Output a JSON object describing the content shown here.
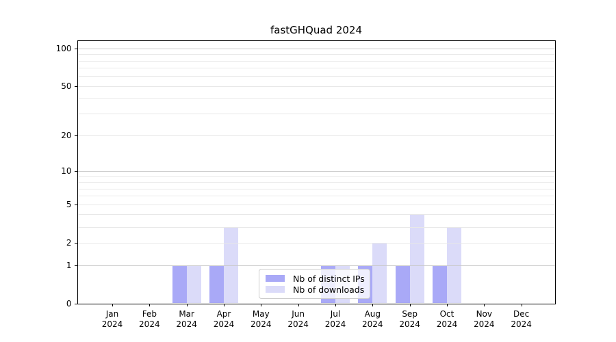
{
  "title": "fastGHQuad 2024",
  "chart_data": {
    "type": "bar",
    "title": "fastGHQuad 2024",
    "categories": [
      "Jan",
      "Feb",
      "Mar",
      "Apr",
      "May",
      "Jun",
      "Jul",
      "Aug",
      "Sep",
      "Oct",
      "Nov",
      "Dec"
    ],
    "category_year": "2024",
    "series": [
      {
        "name": "Nb of distinct IPs",
        "color": "#a9a9f7",
        "values": [
          0,
          0,
          1,
          1,
          0,
          0,
          1,
          1,
          1,
          1,
          0,
          0
        ]
      },
      {
        "name": "Nb of downloads",
        "color": "#dbdbf9",
        "values": [
          0,
          0,
          1,
          3,
          0,
          0,
          1,
          2,
          4,
          3,
          0,
          0
        ]
      }
    ],
    "y_axis": {
      "scale": "log1p",
      "tick_labels": [
        0,
        1,
        2,
        5,
        10,
        20,
        50,
        100
      ],
      "major_gridlines": [
        1,
        10,
        100
      ],
      "minor_gridlines": [
        2,
        3,
        4,
        5,
        6,
        7,
        8,
        9,
        20,
        30,
        40,
        50,
        60,
        70,
        80,
        90
      ],
      "ylim": [
        0,
        113
      ]
    },
    "x_axis": {
      "ylabel": "",
      "xlabel": ""
    },
    "legend": {
      "position": "lower center"
    },
    "grid": true
  },
  "colors": {
    "minor_grid": "#e8e8e8",
    "major_grid": "#c9c9c9",
    "spine": "#000000",
    "series_distinct_ips": "#a9a9f7",
    "series_downloads": "#dbdbf9",
    "legend_border": "#cccccc"
  }
}
